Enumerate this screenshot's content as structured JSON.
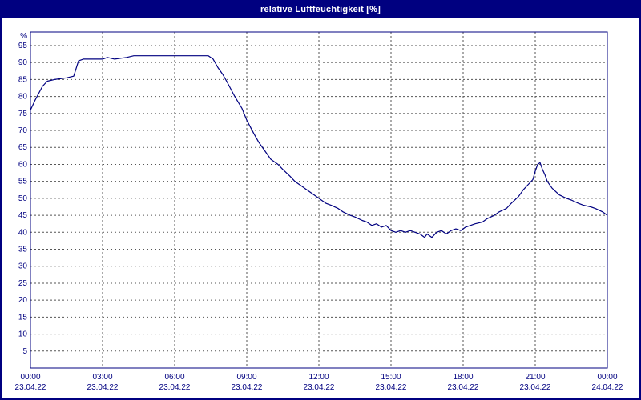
{
  "window": {
    "title": "relative Luftfeuchtigkeit [%]"
  },
  "colors": {
    "titlebar_bg": "#000080",
    "title_text": "#ffffff",
    "border": "#000080",
    "axis_text": "#000080",
    "grid": "#555555",
    "line": "#000080",
    "plot_bg": "#ffffff"
  },
  "chart_data": {
    "type": "line",
    "title": "relative Luftfeuchtigkeit [%]",
    "ylabel": "%",
    "xlabel": "",
    "ylim": [
      0,
      99
    ],
    "xlim_hours": [
      0,
      24
    ],
    "grid": "dashed",
    "legend": "none",
    "y_ticks": [
      5,
      10,
      15,
      20,
      25,
      30,
      35,
      40,
      45,
      50,
      55,
      60,
      65,
      70,
      75,
      80,
      85,
      90,
      95
    ],
    "y_unit_label": "%",
    "x_ticks": [
      {
        "hour": 0,
        "time": "00:00",
        "date": "23.04.22"
      },
      {
        "hour": 3,
        "time": "03:00",
        "date": "23.04.22"
      },
      {
        "hour": 6,
        "time": "06:00",
        "date": "23.04.22"
      },
      {
        "hour": 9,
        "time": "09:00",
        "date": "23.04.22"
      },
      {
        "hour": 12,
        "time": "12:00",
        "date": "23.04.22"
      },
      {
        "hour": 15,
        "time": "15:00",
        "date": "23.04.22"
      },
      {
        "hour": 18,
        "time": "18:00",
        "date": "23.04.22"
      },
      {
        "hour": 21,
        "time": "21:00",
        "date": "23.04.22"
      },
      {
        "hour": 24,
        "time": "00:00",
        "date": "24.04.22"
      }
    ],
    "series": [
      {
        "name": "relative Luftfeuchtigkeit",
        "unit": "%",
        "color": "#000080",
        "points": [
          [
            0.0,
            76
          ],
          [
            0.2,
            79
          ],
          [
            0.5,
            83
          ],
          [
            0.7,
            84.5
          ],
          [
            1.0,
            85
          ],
          [
            1.5,
            85.5
          ],
          [
            1.8,
            86
          ],
          [
            2.0,
            90.5
          ],
          [
            2.2,
            91
          ],
          [
            2.6,
            91
          ],
          [
            3.0,
            91
          ],
          [
            3.2,
            91.5
          ],
          [
            3.5,
            91
          ],
          [
            4.0,
            91.5
          ],
          [
            4.3,
            92
          ],
          [
            5.0,
            92
          ],
          [
            6.0,
            92
          ],
          [
            6.8,
            92
          ],
          [
            7.4,
            92
          ],
          [
            7.6,
            91
          ],
          [
            7.8,
            88.5
          ],
          [
            8.0,
            86.5
          ],
          [
            8.2,
            84
          ],
          [
            8.5,
            80
          ],
          [
            8.8,
            76.5
          ],
          [
            9.0,
            73
          ],
          [
            9.3,
            69
          ],
          [
            9.5,
            66.5
          ],
          [
            9.8,
            63.5
          ],
          [
            10.0,
            61.5
          ],
          [
            10.3,
            60
          ],
          [
            10.5,
            58.5
          ],
          [
            10.8,
            56.5
          ],
          [
            11.0,
            55
          ],
          [
            11.3,
            53.5
          ],
          [
            11.5,
            52.5
          ],
          [
            12.0,
            50
          ],
          [
            12.3,
            48.5
          ],
          [
            12.5,
            48
          ],
          [
            12.8,
            47
          ],
          [
            13.0,
            46
          ],
          [
            13.3,
            45
          ],
          [
            13.5,
            44.5
          ],
          [
            13.8,
            43.5
          ],
          [
            14.0,
            43
          ],
          [
            14.2,
            42
          ],
          [
            14.4,
            42.5
          ],
          [
            14.6,
            41.5
          ],
          [
            14.8,
            42
          ],
          [
            15.0,
            40.5
          ],
          [
            15.2,
            40
          ],
          [
            15.4,
            40.5
          ],
          [
            15.6,
            40
          ],
          [
            15.8,
            40.5
          ],
          [
            16.0,
            40
          ],
          [
            16.2,
            39.5
          ],
          [
            16.4,
            38.5
          ],
          [
            16.5,
            39.5
          ],
          [
            16.7,
            38.5
          ],
          [
            16.9,
            40
          ],
          [
            17.1,
            40.5
          ],
          [
            17.3,
            39.5
          ],
          [
            17.5,
            40.5
          ],
          [
            17.7,
            41
          ],
          [
            17.9,
            40.5
          ],
          [
            18.1,
            41.5
          ],
          [
            18.3,
            42
          ],
          [
            18.5,
            42.5
          ],
          [
            18.8,
            43
          ],
          [
            19.0,
            44
          ],
          [
            19.3,
            45
          ],
          [
            19.5,
            46
          ],
          [
            19.8,
            47
          ],
          [
            20.0,
            48.5
          ],
          [
            20.3,
            50.5
          ],
          [
            20.5,
            52.5
          ],
          [
            20.7,
            54
          ],
          [
            20.9,
            55.5
          ],
          [
            21.0,
            58
          ],
          [
            21.1,
            60
          ],
          [
            21.2,
            60.5
          ],
          [
            21.3,
            58.5
          ],
          [
            21.4,
            57
          ],
          [
            21.5,
            55
          ],
          [
            21.7,
            53
          ],
          [
            22.0,
            51
          ],
          [
            22.3,
            50
          ],
          [
            22.5,
            49.5
          ],
          [
            22.8,
            48.5
          ],
          [
            23.0,
            48
          ],
          [
            23.3,
            47.5
          ],
          [
            23.5,
            47
          ],
          [
            23.8,
            46
          ],
          [
            24.0,
            45
          ]
        ]
      }
    ]
  }
}
